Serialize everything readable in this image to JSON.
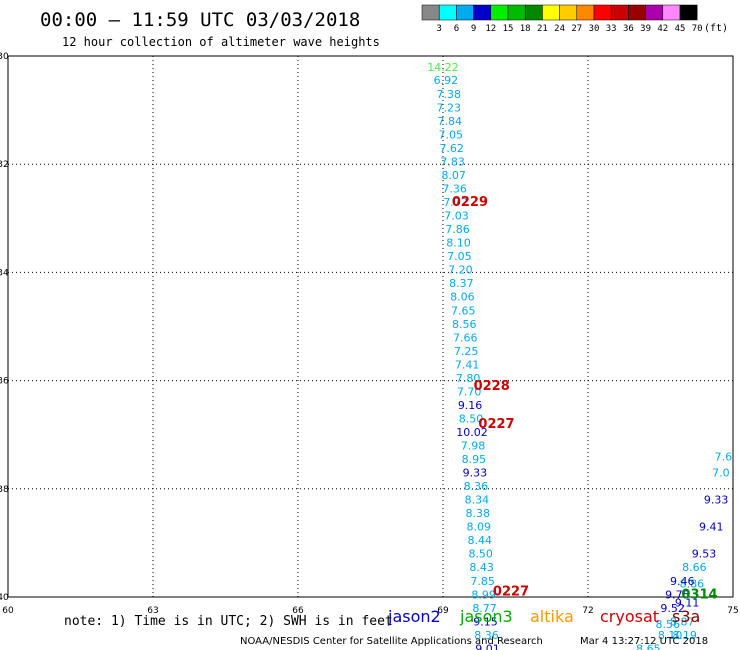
{
  "header": {
    "title": "00:00 – 11:59 UTC 03/03/2018",
    "subtitle": "12 hour collection of altimeter wave heights"
  },
  "colorbar": {
    "unit": "(ft)",
    "ticks": [
      "3",
      "6",
      "9",
      "12",
      "15",
      "18",
      "21",
      "24",
      "27",
      "30",
      "33",
      "36",
      "39",
      "42",
      "45",
      "70"
    ],
    "colors": [
      "#888888",
      "#00ffff",
      "#00aaee",
      "#0000cc",
      "#00ee00",
      "#00bb00",
      "#008800",
      "#ffff00",
      "#ffcc00",
      "#ff8800",
      "#ff0000",
      "#cc0000",
      "#990000",
      "#aa00aa",
      "#ff88ff",
      "#000000"
    ]
  },
  "footer": {
    "note": "note:  1) Time is in UTC; 2) SWH is in feet",
    "legend": [
      {
        "name": "jason2",
        "color": "#0000cc"
      },
      {
        "name": "jason3",
        "color": "#00aa00"
      },
      {
        "name": "altika",
        "color": "#ff9900"
      },
      {
        "name": "cryosat",
        "color": "#cc0000"
      },
      {
        "name": "s3a",
        "color": "#880000"
      }
    ],
    "credit": "NOAA/NESDIS Center for Satellite Applications and Research",
    "timestamp": "Mar  4 13:27:12 UTC 2018"
  },
  "chart_data": {
    "type": "scatter",
    "xlim": [
      60,
      75
    ],
    "ylim": [
      -40,
      -30
    ],
    "x_ticks": [
      "60",
      "63",
      "66",
      "69",
      "72",
      "75"
    ],
    "y_ticks": [
      "-30",
      "-32",
      "-34",
      "-36",
      "-38",
      "-40"
    ],
    "grid": true,
    "points": [
      {
        "x": 69.0,
        "y": -30.2,
        "label": "14.22",
        "color": "#44ee44"
      },
      {
        "x": 69.06,
        "y": -30.44,
        "label": "6.92",
        "color": "#00aaee"
      },
      {
        "x": 69.12,
        "y": -30.7,
        "label": "7.38",
        "color": "#00aaee"
      },
      {
        "x": 69.12,
        "y": -30.95,
        "label": "7.23",
        "color": "#00aaee"
      },
      {
        "x": 69.14,
        "y": -31.2,
        "label": "7.84",
        "color": "#00aaee"
      },
      {
        "x": 69.16,
        "y": -31.45,
        "label": "7.05",
        "color": "#00aaee"
      },
      {
        "x": 69.18,
        "y": -31.7,
        "label": "7.62",
        "color": "#00aaee"
      },
      {
        "x": 69.2,
        "y": -31.95,
        "label": "7.83",
        "color": "#00aaee"
      },
      {
        "x": 69.22,
        "y": -32.2,
        "label": "8.07",
        "color": "#00aaee"
      },
      {
        "x": 69.24,
        "y": -32.45,
        "label": "7.36",
        "color": "#00aaee"
      },
      {
        "x": 69.26,
        "y": -32.7,
        "label": "7.72",
        "color": "#00aaee"
      },
      {
        "x": 69.28,
        "y": -32.95,
        "label": "7.03",
        "color": "#00aaee"
      },
      {
        "x": 69.3,
        "y": -33.2,
        "label": "7.86",
        "color": "#00aaee"
      },
      {
        "x": 69.32,
        "y": -33.45,
        "label": "8.10",
        "color": "#00aaee"
      },
      {
        "x": 69.34,
        "y": -33.7,
        "label": "7.05",
        "color": "#00aaee"
      },
      {
        "x": 69.36,
        "y": -33.95,
        "label": "7.20",
        "color": "#00aaee"
      },
      {
        "x": 69.38,
        "y": -34.2,
        "label": "8.37",
        "color": "#00aaee"
      },
      {
        "x": 69.4,
        "y": -34.45,
        "label": "8.06",
        "color": "#00aaee"
      },
      {
        "x": 69.42,
        "y": -34.7,
        "label": "7.65",
        "color": "#00aaee"
      },
      {
        "x": 69.44,
        "y": -34.95,
        "label": "8.56",
        "color": "#00aaee"
      },
      {
        "x": 69.46,
        "y": -35.2,
        "label": "7.66",
        "color": "#00aaee"
      },
      {
        "x": 69.48,
        "y": -35.45,
        "label": "7.25",
        "color": "#00aaee"
      },
      {
        "x": 69.5,
        "y": -35.7,
        "label": "7.41",
        "color": "#00aaee"
      },
      {
        "x": 69.52,
        "y": -35.95,
        "label": "7.80",
        "color": "#00aaee"
      },
      {
        "x": 69.54,
        "y": -36.2,
        "label": "7.70",
        "color": "#00aaee"
      },
      {
        "x": 69.56,
        "y": -36.45,
        "label": "9.16",
        "color": "#0000cc"
      },
      {
        "x": 69.58,
        "y": -36.7,
        "label": "8.50",
        "color": "#00aaee"
      },
      {
        "x": 69.6,
        "y": -36.95,
        "label": "10.02",
        "color": "#0000cc"
      },
      {
        "x": 69.62,
        "y": -37.2,
        "label": "7.98",
        "color": "#00aaee"
      },
      {
        "x": 69.64,
        "y": -37.45,
        "label": "8.95",
        "color": "#00aaee"
      },
      {
        "x": 69.66,
        "y": -37.7,
        "label": "9.33",
        "color": "#0000cc"
      },
      {
        "x": 69.68,
        "y": -37.95,
        "label": "8.36",
        "color": "#00aaee"
      },
      {
        "x": 69.7,
        "y": -38.2,
        "label": "8.34",
        "color": "#00aaee"
      },
      {
        "x": 69.72,
        "y": -38.45,
        "label": "8.38",
        "color": "#00aaee"
      },
      {
        "x": 69.74,
        "y": -38.7,
        "label": "8.09",
        "color": "#00aaee"
      },
      {
        "x": 69.76,
        "y": -38.95,
        "label": "8.44",
        "color": "#00aaee"
      },
      {
        "x": 69.78,
        "y": -39.2,
        "label": "8.50",
        "color": "#00aaee"
      },
      {
        "x": 69.8,
        "y": -39.45,
        "label": "8.43",
        "color": "#00aaee"
      },
      {
        "x": 69.82,
        "y": -39.7,
        "label": "7.85",
        "color": "#00aaee"
      },
      {
        "x": 69.84,
        "y": -39.95,
        "label": "8.99",
        "color": "#00aaee"
      },
      {
        "x": 69.86,
        "y": -40.2,
        "label": "8.77",
        "color": "#00aaee"
      },
      {
        "x": 69.88,
        "y": -40.45,
        "label": "9.15",
        "color": "#0000cc"
      },
      {
        "x": 69.9,
        "y": -40.7,
        "label": "8.36",
        "color": "#00aaee"
      },
      {
        "x": 69.92,
        "y": -40.95,
        "label": "9.01",
        "color": "#0000cc"
      },
      {
        "x": 73.25,
        "y": -40.95,
        "label": "8.65",
        "color": "#00aaee"
      },
      {
        "x": 73.7,
        "y": -40.7,
        "label": "8.10",
        "color": "#00aaee"
      },
      {
        "x": 74.0,
        "y": -40.7,
        "label": "8.19",
        "color": "#00aaee"
      },
      {
        "x": 73.65,
        "y": -40.5,
        "label": "8.56",
        "color": "#00aaee"
      },
      {
        "x": 73.95,
        "y": -40.45,
        "label": "8.87",
        "color": "#00aaee"
      },
      {
        "x": 73.75,
        "y": -40.2,
        "label": "9.52",
        "color": "#0000cc"
      },
      {
        "x": 74.05,
        "y": -40.1,
        "label": "9.11",
        "color": "#0000cc"
      },
      {
        "x": 73.85,
        "y": -39.95,
        "label": "9.75",
        "color": "#0000cc"
      },
      {
        "x": 74.15,
        "y": -39.75,
        "label": "8.86",
        "color": "#00aaee"
      },
      {
        "x": 73.95,
        "y": -39.7,
        "label": "9.46",
        "color": "#0000cc"
      },
      {
        "x": 74.2,
        "y": -39.45,
        "label": "8.66",
        "color": "#00aaee"
      },
      {
        "x": 74.4,
        "y": -39.2,
        "label": "9.53",
        "color": "#0000cc"
      },
      {
        "x": 74.55,
        "y": -38.7,
        "label": "9.41",
        "color": "#0000cc"
      },
      {
        "x": 74.65,
        "y": -38.2,
        "label": "9.33",
        "color": "#0000cc"
      },
      {
        "x": 74.75,
        "y": -37.7,
        "label": "7.0",
        "color": "#00aaee"
      },
      {
        "x": 74.8,
        "y": -37.4,
        "label": "7.6",
        "color": "#00aaee"
      }
    ],
    "pass_labels": [
      {
        "x": 69.1,
        "y": -32.7,
        "label": "0229",
        "color": "#cc0000"
      },
      {
        "x": 69.55,
        "y": -36.1,
        "label": "0228",
        "color": "#cc0000"
      },
      {
        "x": 69.65,
        "y": -36.8,
        "label": "0227",
        "color": "#cc0000"
      },
      {
        "x": 69.95,
        "y": -39.9,
        "label": "0227",
        "color": "#cc0000"
      },
      {
        "x": 73.85,
        "y": -39.95,
        "label": "0314",
        "color": "#008800"
      }
    ]
  }
}
